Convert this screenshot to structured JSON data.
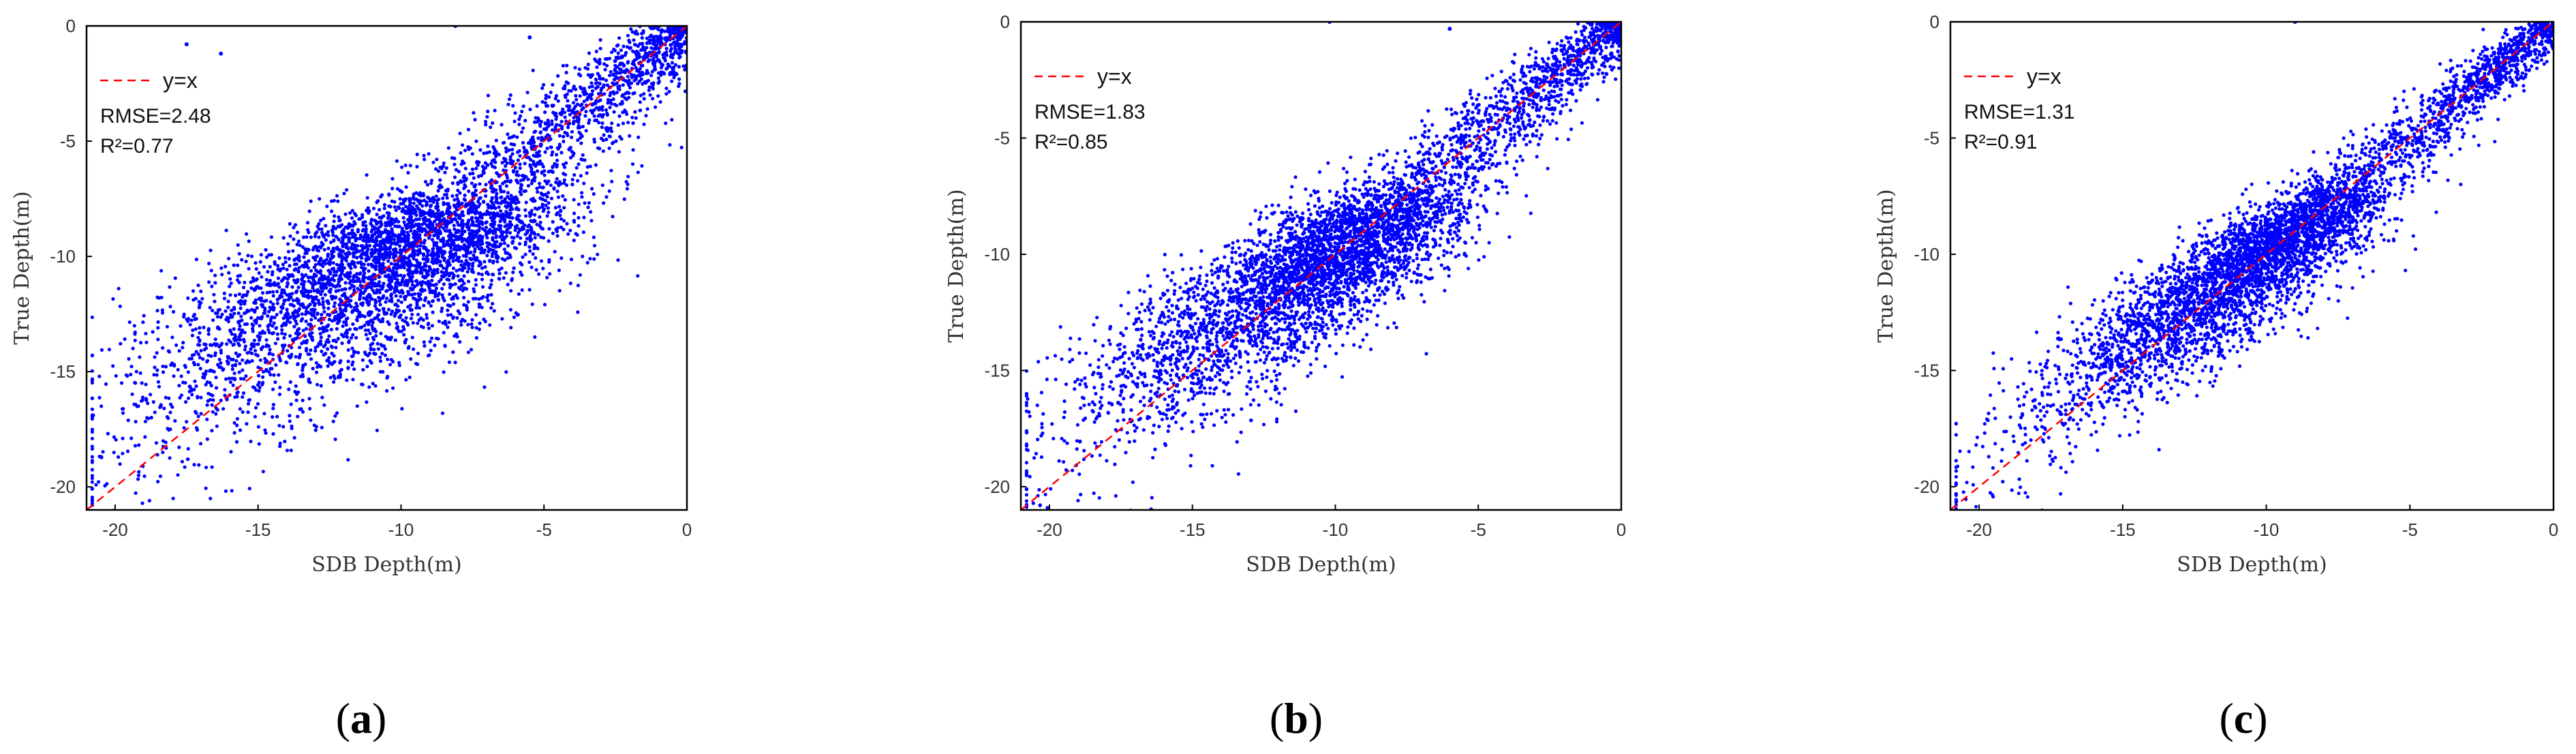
{
  "chart_data": [
    {
      "panel": "a",
      "type": "scatter",
      "title": "",
      "xlabel": "SDB Depth(m)",
      "ylabel": "True Depth(m)",
      "xlim": [
        -21,
        0
      ],
      "ylim": [
        -21,
        0
      ],
      "xticks": [
        -20,
        -15,
        -10,
        -5,
        0
      ],
      "yticks": [
        -20,
        -15,
        -10,
        -5,
        0
      ],
      "xtick_labels": [
        "-20",
        "-15",
        "-10",
        "-5",
        "0"
      ],
      "ytick_labels": [
        "-20",
        "-15",
        "-10",
        "-5",
        "0"
      ],
      "point_color": "#0000ff",
      "reference_line": {
        "label": "y=x",
        "color": "#ff0000",
        "style": "dashed"
      },
      "legend_location": "top-left",
      "annotations": [
        "RMSE=2.48",
        "R²=0.77"
      ],
      "stats": {
        "rmse": 2.48,
        "r2": 0.77
      },
      "point_count": 5000,
      "point_spread_sigma": 2.3,
      "outliers": [
        [
          -17.5,
          -0.8
        ],
        [
          -16.3,
          -1.2
        ],
        [
          -8.1,
          0.0
        ],
        [
          -5.5,
          -0.5
        ]
      ],
      "panel_label": {
        "open": "(",
        "letter": "a",
        "close": ")"
      }
    },
    {
      "panel": "b",
      "type": "scatter",
      "title": "",
      "xlabel": "SDB Depth(m)",
      "ylabel": "True Depth(m)",
      "xlim": [
        -21,
        0
      ],
      "ylim": [
        -21,
        0
      ],
      "xticks": [
        -20,
        -15,
        -10,
        -5,
        0
      ],
      "yticks": [
        -20,
        -15,
        -10,
        -5,
        0
      ],
      "xtick_labels": [
        "-20",
        "-15",
        "-10",
        "-5",
        "0"
      ],
      "ytick_labels": [
        "-20",
        "-15",
        "-10",
        "-5",
        "0"
      ],
      "point_color": "#0000ff",
      "reference_line": {
        "label": "y=x",
        "color": "#ff0000",
        "style": "dashed"
      },
      "legend_location": "top-left",
      "annotations": [
        "RMSE=1.83",
        "R²=0.85"
      ],
      "stats": {
        "rmse": 1.83,
        "r2": 0.85
      },
      "point_count": 5000,
      "point_spread_sigma": 1.7,
      "outliers": [
        [
          -10.2,
          0.0
        ],
        [
          -6.0,
          -0.3
        ]
      ],
      "panel_label": {
        "open": "(",
        "letter": "b",
        "close": ")"
      }
    },
    {
      "panel": "c",
      "type": "scatter",
      "title": "",
      "xlabel": "SDB Depth(m)",
      "ylabel": "True Depth(m)",
      "xlim": [
        -21,
        0
      ],
      "ylim": [
        -21,
        0
      ],
      "xticks": [
        -20,
        -15,
        -10,
        -5,
        0
      ],
      "yticks": [
        -20,
        -15,
        -10,
        -5,
        0
      ],
      "xtick_labels": [
        "-20",
        "-15",
        "-10",
        "-5",
        "0"
      ],
      "ytick_labels": [
        "-20",
        "-15",
        "-10",
        "-5",
        "0"
      ],
      "point_color": "#0000ff",
      "reference_line": {
        "label": "y=x",
        "color": "#ff0000",
        "style": "dashed"
      },
      "legend_location": "top-left",
      "annotations": [
        "RMSE=1.31",
        "R²=0.91"
      ],
      "stats": {
        "rmse": 1.31,
        "r2": 0.91
      },
      "point_count": 5000,
      "point_spread_sigma": 1.25,
      "outliers": [
        [
          -9.0,
          0.0
        ]
      ],
      "panel_label": {
        "open": "(",
        "letter": "c",
        "close": ")"
      }
    }
  ]
}
